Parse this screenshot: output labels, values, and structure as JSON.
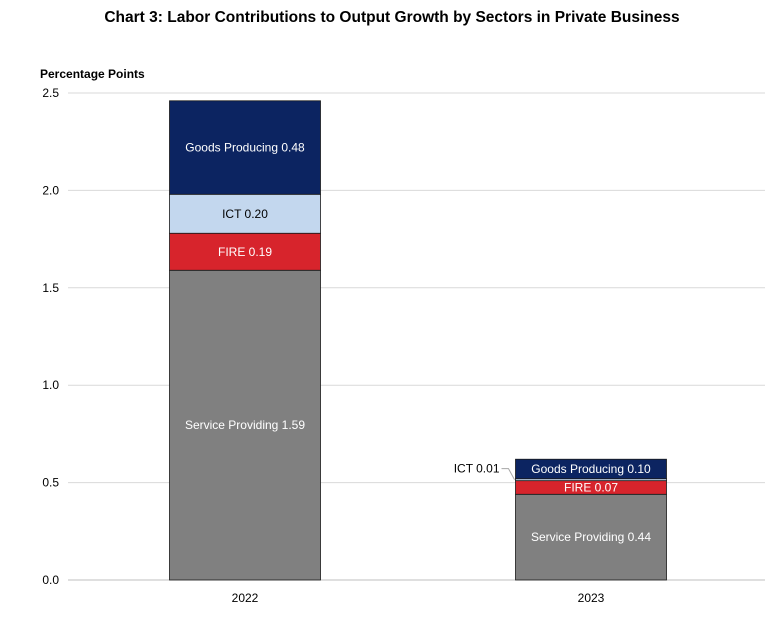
{
  "chart_data": {
    "type": "bar",
    "stacked": true,
    "title": "Chart 3: Labor Contributions to Output Growth by Sectors in Private Business",
    "ylabel": "Percentage Points",
    "xlabel": "",
    "categories": [
      "2022",
      "2023"
    ],
    "ylim": [
      0,
      2.5
    ],
    "yticks": [
      0.0,
      0.5,
      1.0,
      1.5,
      2.0,
      2.5
    ],
    "ytick_labels": [
      "0.0",
      "0.5",
      "1.0",
      "1.5",
      "2.0",
      "2.5"
    ],
    "grid": true,
    "legend": "none",
    "series": [
      {
        "key": "service",
        "values": [
          1.59,
          0.44
        ],
        "labels": [
          "Service Providing 1.59",
          "Service Providing 0.44"
        ],
        "color": "#808080",
        "label_color": "#ffffff"
      },
      {
        "key": "fire",
        "values": [
          0.19,
          0.07
        ],
        "labels": [
          "FIRE 0.19",
          "FIRE 0.07"
        ],
        "color": "#d7242c",
        "label_color": "#ffffff"
      },
      {
        "key": "ict",
        "values": [
          0.2,
          0.01
        ],
        "labels": [
          "ICT 0.20",
          "ICT 0.01"
        ],
        "color": "#c3d7ee",
        "label_color": "#000000",
        "outside_label": [
          false,
          true
        ]
      },
      {
        "key": "goods",
        "values": [
          0.48,
          0.1
        ],
        "labels": [
          "Goods Producing 0.48",
          "Goods Producing 0.10"
        ],
        "color": "#0c2461",
        "label_color": "#ffffff"
      }
    ]
  }
}
